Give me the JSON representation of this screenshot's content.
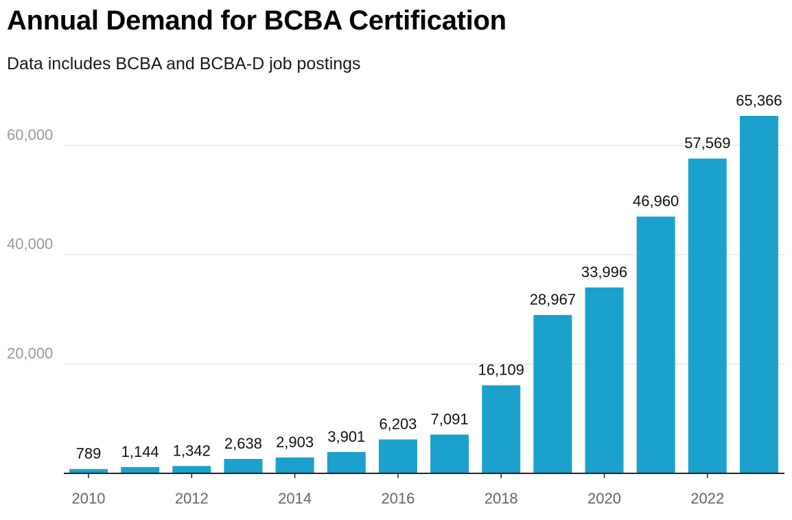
{
  "chart_data": {
    "type": "bar",
    "title": "Annual Demand for BCBA Certification",
    "subtitle": "Data includes BCBA and BCBA-D job postings",
    "xlabel": "",
    "ylabel": "",
    "x": [
      2010,
      2011,
      2012,
      2013,
      2014,
      2015,
      2016,
      2017,
      2018,
      2019,
      2020,
      2021,
      2022,
      2023
    ],
    "values": [
      789,
      1144,
      1342,
      2638,
      2903,
      3901,
      6203,
      7091,
      16109,
      28967,
      33996,
      46960,
      57569,
      65366
    ],
    "value_labels": [
      "789",
      "1,144",
      "1,342",
      "2,638",
      "2,903",
      "3,901",
      "6,203",
      "7,091",
      "16,109",
      "28,967",
      "33,996",
      "46,960",
      "57,569",
      "65,366"
    ],
    "x_tick_labels": [
      "2010",
      "2012",
      "2014",
      "2016",
      "2018",
      "2020",
      "2022"
    ],
    "y_tick_values": [
      20000,
      40000,
      60000
    ],
    "y_tick_labels": [
      "20,000",
      "40,000",
      "60,000"
    ],
    "ylim": [
      0,
      65366
    ],
    "grid": "horizontal",
    "legend": "none",
    "colors": {
      "bar": "#1ba1cc",
      "grid": "#e3e3e3",
      "axis": "#222222"
    }
  }
}
